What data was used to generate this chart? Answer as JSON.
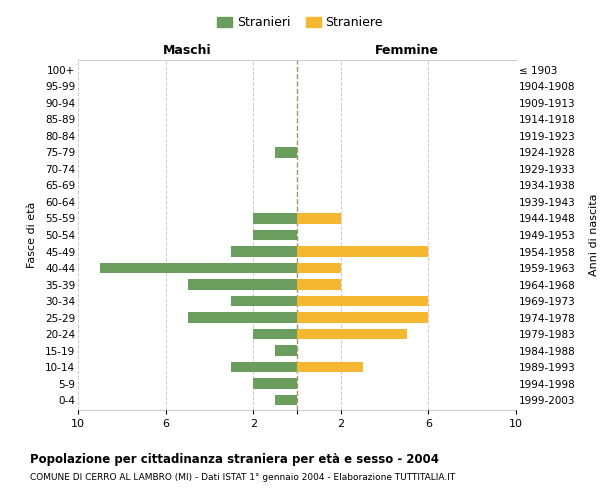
{
  "age_groups": [
    "100+",
    "95-99",
    "90-94",
    "85-89",
    "80-84",
    "75-79",
    "70-74",
    "65-69",
    "60-64",
    "55-59",
    "50-54",
    "45-49",
    "40-44",
    "35-39",
    "30-34",
    "25-29",
    "20-24",
    "15-19",
    "10-14",
    "5-9",
    "0-4"
  ],
  "birth_years": [
    "≤ 1903",
    "1904-1908",
    "1909-1913",
    "1914-1918",
    "1919-1923",
    "1924-1928",
    "1929-1933",
    "1934-1938",
    "1939-1943",
    "1944-1948",
    "1949-1953",
    "1954-1958",
    "1959-1963",
    "1964-1968",
    "1969-1973",
    "1974-1978",
    "1979-1983",
    "1984-1988",
    "1989-1993",
    "1994-1998",
    "1999-2003"
  ],
  "maschi": [
    0,
    0,
    0,
    0,
    0,
    1,
    0,
    0,
    0,
    2,
    2,
    3,
    9,
    5,
    3,
    5,
    2,
    1,
    3,
    2,
    1
  ],
  "femmine": [
    0,
    0,
    0,
    0,
    0,
    0,
    0,
    0,
    0,
    2,
    0,
    6,
    2,
    2,
    6,
    6,
    5,
    0,
    3,
    0,
    0
  ],
  "color_maschi": "#6b9e5e",
  "color_femmine": "#f5b731",
  "title": "Popolazione per cittadinanza straniera per età e sesso - 2004",
  "subtitle": "COMUNE DI CERRO AL LAMBRO (MI) - Dati ISTAT 1° gennaio 2004 - Elaborazione TUTTITALIA.IT",
  "xlabel_left": "Maschi",
  "xlabel_right": "Femmine",
  "ylabel_left": "Fasce di età",
  "ylabel_right": "Anni di nascita",
  "legend_maschi": "Stranieri",
  "legend_femmine": "Straniere",
  "xlim": 10,
  "bg_color": "#ffffff",
  "grid_color": "#cccccc",
  "bar_height": 0.65
}
